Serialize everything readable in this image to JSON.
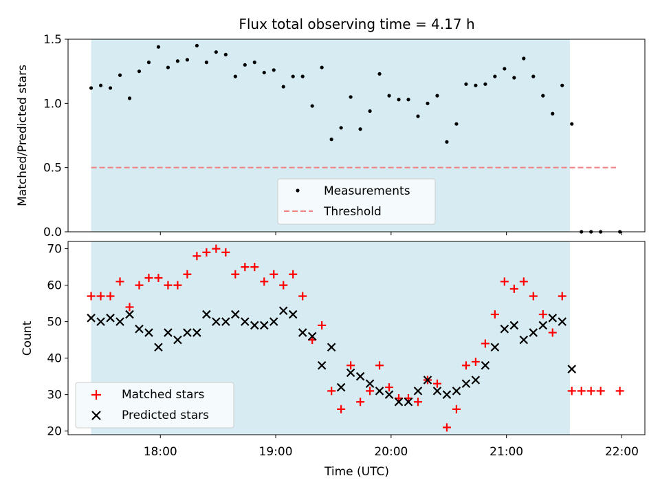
{
  "title": "Flux total observing time = 4.17 h",
  "chart_data": [
    {
      "type": "scatter",
      "ylabel": "Matched/Predicted stars",
      "xlabel": "",
      "ylim": [
        0,
        1.5
      ],
      "xlim": [
        "17:12",
        "22:12"
      ],
      "yticks": [
        "0.0",
        "0.5",
        "1.0",
        "1.5"
      ],
      "shaded_span": [
        "17:24",
        "21:33"
      ],
      "threshold": 0.5,
      "threshold_span": [
        "17:24",
        "21:57"
      ],
      "legend": {
        "placement": "lower-center",
        "entries": [
          "Measurements",
          "Threshold"
        ]
      },
      "series": [
        {
          "name": "Measurements",
          "color": "#000000",
          "x": [
            "17:24",
            "17:29",
            "17:34",
            "17:39",
            "17:44",
            "17:49",
            "17:54",
            "17:59",
            "18:04",
            "18:09",
            "18:14",
            "18:19",
            "18:24",
            "18:29",
            "18:34",
            "18:39",
            "18:44",
            "18:49",
            "18:54",
            "18:59",
            "19:04",
            "19:09",
            "19:14",
            "19:19",
            "19:24",
            "19:29",
            "19:34",
            "19:39",
            "19:44",
            "19:49",
            "19:54",
            "19:59",
            "20:04",
            "20:09",
            "20:14",
            "20:19",
            "20:24",
            "20:29",
            "20:34",
            "20:39",
            "20:44",
            "20:49",
            "20:54",
            "20:59",
            "21:04",
            "21:09",
            "21:14",
            "21:19",
            "21:24",
            "21:29",
            "21:34",
            "21:39",
            "21:44",
            "21:49",
            "21:59"
          ],
          "y": [
            1.12,
            1.14,
            1.12,
            1.22,
            1.04,
            1.25,
            1.32,
            1.44,
            1.28,
            1.33,
            1.34,
            1.45,
            1.32,
            1.4,
            1.38,
            1.21,
            1.3,
            1.32,
            1.24,
            1.26,
            1.13,
            1.21,
            1.21,
            0.98,
            1.28,
            0.72,
            0.81,
            1.05,
            0.8,
            0.94,
            1.23,
            1.06,
            1.03,
            1.03,
            0.9,
            1.0,
            1.06,
            0.7,
            0.84,
            1.15,
            1.14,
            1.15,
            1.21,
            1.27,
            1.2,
            1.35,
            1.21,
            1.06,
            0.92,
            1.14,
            0.84,
            0.0,
            0.0,
            0.0,
            0.0
          ]
        }
      ]
    },
    {
      "type": "scatter",
      "ylabel": "Count",
      "xlabel": "Time (UTC)",
      "ylim": [
        19,
        72
      ],
      "xlim": [
        "17:12",
        "22:12"
      ],
      "yticks": [
        "20",
        "30",
        "40",
        "50",
        "60",
        "70"
      ],
      "xticks": [
        "18:00",
        "19:00",
        "20:00",
        "21:00",
        "22:00"
      ],
      "shaded_span": [
        "17:24",
        "21:33"
      ],
      "legend": {
        "placement": "lower-left",
        "entries": [
          "Matched stars",
          "Predicted stars"
        ]
      },
      "series": [
        {
          "name": "Matched stars",
          "marker": "plus",
          "color": "#ff0000",
          "x": [
            "17:24",
            "17:29",
            "17:34",
            "17:39",
            "17:44",
            "17:49",
            "17:54",
            "17:59",
            "18:04",
            "18:09",
            "18:14",
            "18:19",
            "18:24",
            "18:29",
            "18:34",
            "18:39",
            "18:44",
            "18:49",
            "18:54",
            "18:59",
            "19:04",
            "19:09",
            "19:14",
            "19:19",
            "19:24",
            "19:29",
            "19:34",
            "19:39",
            "19:44",
            "19:49",
            "19:54",
            "19:59",
            "20:04",
            "20:09",
            "20:14",
            "20:19",
            "20:24",
            "20:29",
            "20:34",
            "20:39",
            "20:44",
            "20:49",
            "20:54",
            "20:59",
            "21:04",
            "21:09",
            "21:14",
            "21:19",
            "21:24",
            "21:29",
            "21:34",
            "21:39",
            "21:44",
            "21:49",
            "21:59"
          ],
          "y": [
            57,
            57,
            57,
            61,
            54,
            60,
            62,
            62,
            60,
            60,
            63,
            68,
            69,
            70,
            69,
            63,
            65,
            65,
            61,
            63,
            60,
            63,
            57,
            45,
            49,
            31,
            26,
            38,
            28,
            31,
            38,
            32,
            29,
            29,
            28,
            34,
            33,
            21,
            26,
            38,
            39,
            44,
            52,
            61,
            59,
            61,
            57,
            52,
            47,
            57,
            31,
            31,
            31,
            31,
            31
          ]
        },
        {
          "name": "Predicted stars",
          "marker": "x",
          "color": "#000000",
          "x": [
            "17:24",
            "17:29",
            "17:34",
            "17:39",
            "17:44",
            "17:49",
            "17:54",
            "17:59",
            "18:04",
            "18:09",
            "18:14",
            "18:19",
            "18:24",
            "18:29",
            "18:34",
            "18:39",
            "18:44",
            "18:49",
            "18:54",
            "18:59",
            "19:04",
            "19:09",
            "19:14",
            "19:19",
            "19:24",
            "19:29",
            "19:34",
            "19:39",
            "19:44",
            "19:49",
            "19:54",
            "19:59",
            "20:04",
            "20:09",
            "20:14",
            "20:19",
            "20:24",
            "20:29",
            "20:34",
            "20:39",
            "20:44",
            "20:49",
            "20:54",
            "20:59",
            "21:04",
            "21:09",
            "21:14",
            "21:19",
            "21:24",
            "21:29",
            "21:34"
          ],
          "y": [
            51,
            50,
            51,
            50,
            52,
            48,
            47,
            43,
            47,
            45,
            47,
            47,
            52,
            50,
            50,
            52,
            50,
            49,
            49,
            50,
            53,
            52,
            47,
            46,
            38,
            43,
            32,
            36,
            35,
            33,
            31,
            30,
            28,
            28,
            31,
            34,
            31,
            30,
            31,
            33,
            34,
            38,
            43,
            48,
            49,
            45,
            47,
            49,
            51,
            50,
            37
          ]
        }
      ]
    }
  ],
  "colors": {
    "shade": "#add8e6",
    "threshold": "#f08080",
    "legend_bg": "#f5fafc"
  }
}
